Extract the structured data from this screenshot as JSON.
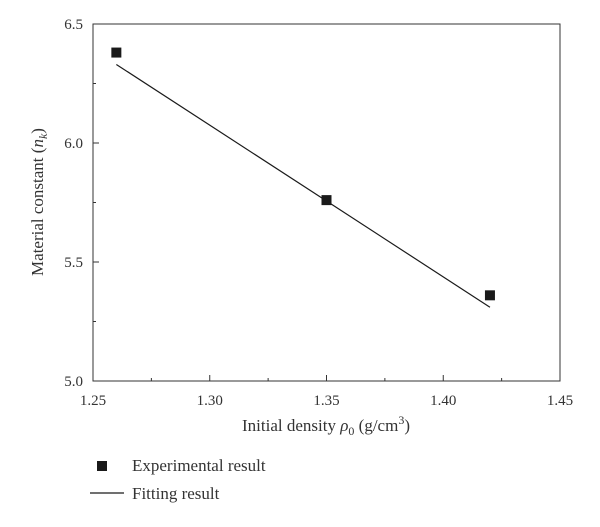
{
  "chart_data": {
    "type": "scatter",
    "title": "",
    "xlabel": {
      "main": "Initial density ",
      "symbol": "ρ",
      "sub": "0",
      "unit_open": " (g/cm",
      "unit_sup": "3",
      "unit_close": ")"
    },
    "ylabel": {
      "main": "Material constant (",
      "symbol": "n",
      "sub": "k",
      "close": ")"
    },
    "xlim": [
      1.25,
      1.45
    ],
    "ylim": [
      5.0,
      6.5
    ],
    "xticks": [
      "1.25",
      "1.30",
      "1.35",
      "1.40",
      "1.45"
    ],
    "yticks": [
      "5.0",
      "5.5",
      "6.0",
      "6.5"
    ],
    "grid": false,
    "legend_position": "below",
    "series": [
      {
        "name": "Experimental result",
        "kind": "scatter",
        "marker": "square",
        "color": "#1a1a1a",
        "x": [
          1.26,
          1.35,
          1.42
        ],
        "y": [
          6.38,
          5.76,
          5.36
        ]
      },
      {
        "name": "Fitting result",
        "kind": "line",
        "color": "#1a1a1a",
        "x": [
          1.26,
          1.42
        ],
        "y": [
          6.33,
          5.31
        ]
      }
    ]
  }
}
